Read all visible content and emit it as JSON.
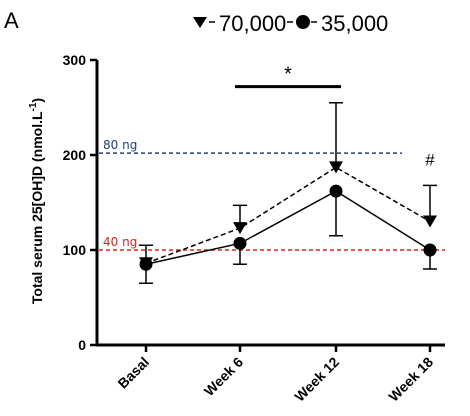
{
  "chart_data": {
    "type": "line",
    "panel_label": "A",
    "categories": [
      "Basal",
      "Week 6",
      "Week 12",
      "Week 18"
    ],
    "ylabel_main": "Total serum 25[OH]D (nmol.L",
    "ylabel_sup": "-1",
    "ylabel_close": ")",
    "ylim": [
      0,
      300
    ],
    "yticks": [
      "0",
      "100",
      "200",
      "300"
    ],
    "legend": [
      "70,000",
      "35,000"
    ],
    "series": [
      {
        "name": "70,000",
        "marker": "triangle-down",
        "line": "dashed",
        "values": [
          86,
          123,
          187,
          130
        ],
        "err_low": [
          null,
          null,
          null,
          null
        ],
        "err_high": [
          null,
          147,
          255,
          168
        ]
      },
      {
        "name": "35,000",
        "marker": "circle",
        "line": "solid",
        "values": [
          85,
          107,
          162,
          100
        ],
        "err_low": [
          65,
          85,
          115,
          80
        ],
        "err_high": [
          105,
          null,
          null,
          null
        ]
      }
    ],
    "reference_lines": [
      {
        "value": 202,
        "label": "80 ng",
        "color": "#1f3f7a"
      },
      {
        "value": 100,
        "label": "40 ng",
        "color": "#e02020"
      }
    ],
    "annotations": [
      {
        "text": "*",
        "from": "Week 6",
        "to": "Week 12",
        "y": 272
      },
      {
        "text": "#",
        "at": "Week 18",
        "y": 185
      }
    ]
  }
}
